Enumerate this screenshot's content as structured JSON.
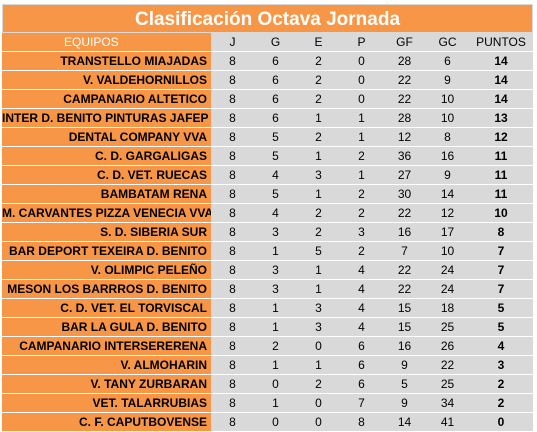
{
  "title": "Clasificación Octava Jornada",
  "headers": {
    "team": "EQUIPOS",
    "j": "J",
    "g": "G",
    "e": "E",
    "p": "P",
    "gf": "GF",
    "gc": "GC",
    "pts": "PUNTOS"
  },
  "rows": [
    {
      "team": "TRANSTELLO MIAJADAS",
      "j": "8",
      "g": "6",
      "e": "2",
      "p": "0",
      "gf": "28",
      "gc": "6",
      "pts": "14"
    },
    {
      "team": "V. VALDEHORNILLOS",
      "j": "8",
      "g": "6",
      "e": "2",
      "p": "0",
      "gf": "22",
      "gc": "9",
      "pts": "14"
    },
    {
      "team": "CAMPANARIO ALTETICO",
      "j": "8",
      "g": "6",
      "e": "2",
      "p": "0",
      "gf": "22",
      "gc": "10",
      "pts": "14"
    },
    {
      "team": "INTER D. BENITO PINTURAS JAFEP",
      "j": "8",
      "g": "6",
      "e": "1",
      "p": "1",
      "gf": "28",
      "gc": "10",
      "pts": "13"
    },
    {
      "team": "DENTAL COMPANY VVA",
      "j": "8",
      "g": "5",
      "e": "2",
      "p": "1",
      "gf": "12",
      "gc": "8",
      "pts": "12"
    },
    {
      "team": "C. D. GARGALIGAS",
      "j": "8",
      "g": "5",
      "e": "1",
      "p": "2",
      "gf": "36",
      "gc": "16",
      "pts": "11"
    },
    {
      "team": "C. D. VET. RUECAS",
      "j": "8",
      "g": "4",
      "e": "3",
      "p": "1",
      "gf": "27",
      "gc": "9",
      "pts": "11"
    },
    {
      "team": "BAMBATAM RENA",
      "j": "8",
      "g": "5",
      "e": "1",
      "p": "2",
      "gf": "30",
      "gc": "14",
      "pts": "11"
    },
    {
      "team": "M. CARVANTES PIZZA VENECIA VVA",
      "j": "8",
      "g": "4",
      "e": "2",
      "p": "2",
      "gf": "22",
      "gc": "12",
      "pts": "10"
    },
    {
      "team": "S. D. SIBERIA SUR",
      "j": "8",
      "g": "3",
      "e": "2",
      "p": "3",
      "gf": "16",
      "gc": "17",
      "pts": "8"
    },
    {
      "team": "BAR DEPORT TEXEIRA D. BENITO",
      "j": "8",
      "g": "1",
      "e": "5",
      "p": "2",
      "gf": "7",
      "gc": "10",
      "pts": "7"
    },
    {
      "team": "V. OLIMPIC PELEÑO",
      "j": "8",
      "g": "3",
      "e": "1",
      "p": "4",
      "gf": "22",
      "gc": "24",
      "pts": "7"
    },
    {
      "team": "MESON LOS BARRROS D. BENITO",
      "j": "8",
      "g": "3",
      "e": "1",
      "p": "4",
      "gf": "22",
      "gc": "24",
      "pts": "7"
    },
    {
      "team": "C. D. VET. EL TORVISCAL",
      "j": "8",
      "g": "1",
      "e": "3",
      "p": "4",
      "gf": "15",
      "gc": "18",
      "pts": "5"
    },
    {
      "team": "BAR LA GULA D. BENITO",
      "j": "8",
      "g": "1",
      "e": "3",
      "p": "4",
      "gf": "15",
      "gc": "25",
      "pts": "5"
    },
    {
      "team": "CAMPANARIO INTERSERERENA",
      "j": "8",
      "g": "2",
      "e": "0",
      "p": "6",
      "gf": "16",
      "gc": "26",
      "pts": "4"
    },
    {
      "team": "V. ALMOHARIN",
      "j": "8",
      "g": "1",
      "e": "1",
      "p": "6",
      "gf": "9",
      "gc": "22",
      "pts": "3"
    },
    {
      "team": "V. TANY ZURBARAN",
      "j": "8",
      "g": "0",
      "e": "2",
      "p": "6",
      "gf": "5",
      "gc": "25",
      "pts": "2"
    },
    {
      "team": "VET. TALARRUBIAS",
      "j": "8",
      "g": "1",
      "e": "0",
      "p": "7",
      "gf": "9",
      "gc": "34",
      "pts": "2"
    },
    {
      "team": "C. F. CAPUTBOVENSE",
      "j": "8",
      "g": "0",
      "e": "0",
      "p": "8",
      "gf": "14",
      "gc": "41",
      "pts": "0"
    }
  ]
}
